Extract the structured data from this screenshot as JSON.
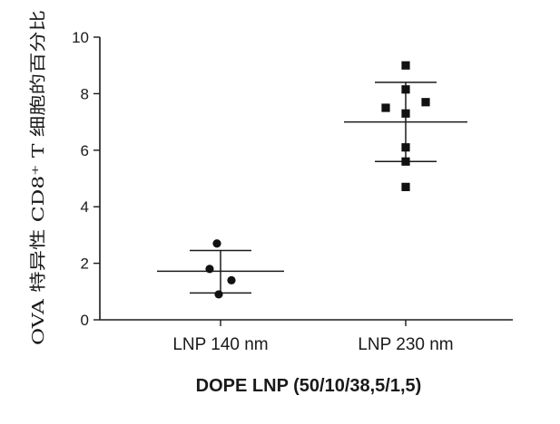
{
  "chart_data": {
    "type": "scatter",
    "title": "",
    "xlabel": "DOPE LNP (50/10/38,5/1,5)",
    "ylabel": "OVA 特异性 CD8⁺ T 细胞的百分比",
    "ylim": [
      0,
      10
    ],
    "yticks": [
      0,
      2,
      4,
      6,
      8,
      10
    ],
    "grid": false,
    "categories": [
      "LNP 140 nm",
      "LNP 230 nm"
    ],
    "series": [
      {
        "category": "LNP 140 nm",
        "marker": "circle",
        "points": [
          {
            "offset": -0.02,
            "y": 2.7
          },
          {
            "offset": -0.06,
            "y": 1.8
          },
          {
            "offset": 0.06,
            "y": 1.4
          },
          {
            "offset": -0.01,
            "y": 0.9
          }
        ],
        "mean": 1.72,
        "error": [
          0.95,
          2.45
        ]
      },
      {
        "category": "LNP 230 nm",
        "marker": "square",
        "points": [
          {
            "offset": 0.0,
            "y": 9.0
          },
          {
            "offset": 0.0,
            "y": 8.15
          },
          {
            "offset": 0.11,
            "y": 7.7
          },
          {
            "offset": -0.11,
            "y": 7.5
          },
          {
            "offset": 0.0,
            "y": 7.3
          },
          {
            "offset": 0.0,
            "y": 6.1
          },
          {
            "offset": 0.0,
            "y": 5.6
          },
          {
            "offset": 0.0,
            "y": 4.7
          }
        ],
        "mean": 7.0,
        "error": [
          5.6,
          8.4
        ]
      }
    ]
  }
}
